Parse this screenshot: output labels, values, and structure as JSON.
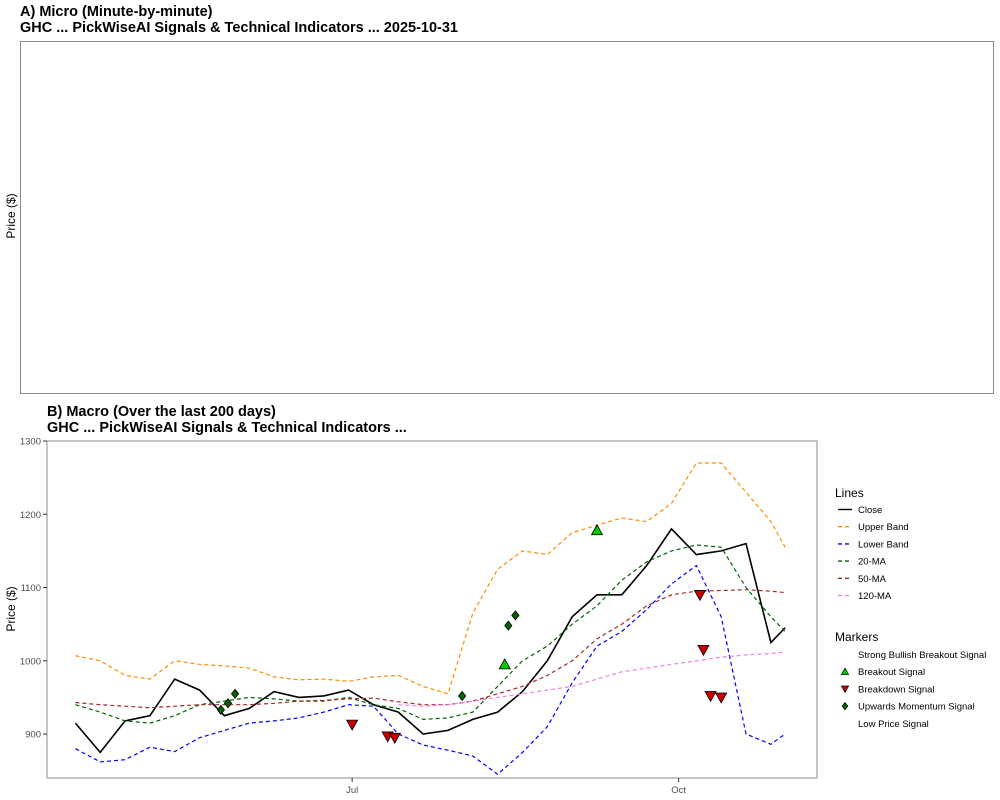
{
  "chart_data": [
    {
      "type": "line",
      "title": "A) Micro (Minute-by-minute)",
      "subtitle": "GHC ... PickWiseAI Signals & Technical Indicators ... 2025-10-31",
      "ylabel": "Price ($)",
      "series": []
    },
    {
      "type": "line",
      "title": "B) Macro (Over the last 200 days)",
      "subtitle": "GHC ... PickWiseAI Signals & Technical Indicators ...",
      "ylabel": "Price ($)",
      "x_ticks": [
        "Jul",
        "Oct"
      ],
      "y_ticks": [
        900,
        1000,
        1100,
        1200,
        1300
      ],
      "ylim": [
        840,
        1300
      ],
      "grid": false,
      "legend_position": "right",
      "x": [
        "2025-04-14",
        "2025-04-21",
        "2025-04-28",
        "2025-05-05",
        "2025-05-12",
        "2025-05-19",
        "2025-05-26",
        "2025-06-02",
        "2025-06-09",
        "2025-06-16",
        "2025-06-23",
        "2025-06-30",
        "2025-07-07",
        "2025-07-14",
        "2025-07-21",
        "2025-07-28",
        "2025-08-04",
        "2025-08-11",
        "2025-08-18",
        "2025-08-25",
        "2025-09-01",
        "2025-09-08",
        "2025-09-15",
        "2025-09-22",
        "2025-09-29",
        "2025-10-06",
        "2025-10-13",
        "2025-10-20",
        "2025-10-27",
        "2025-10-31"
      ],
      "series": [
        {
          "name": "Close",
          "color": "#000000",
          "dash": "solid",
          "values": [
            915,
            875,
            918,
            925,
            975,
            960,
            925,
            935,
            958,
            950,
            952,
            960,
            940,
            930,
            900,
            905,
            920,
            930,
            958,
            1000,
            1060,
            1090,
            1090,
            1130,
            1180,
            1145,
            1150,
            1160,
            1025,
            1045
          ]
        },
        {
          "name": "Upper Band",
          "color": "#ff8c00",
          "dash": "dashed",
          "values": [
            1007,
            1000,
            980,
            975,
            1000,
            995,
            993,
            990,
            978,
            974,
            975,
            972,
            978,
            980,
            965,
            955,
            1065,
            1125,
            1150,
            1145,
            1175,
            1185,
            1195,
            1190,
            1215,
            1270,
            1270,
            1230,
            1190,
            1155
          ]
        },
        {
          "name": "Lower Band",
          "color": "#0000ff",
          "dash": "dashed",
          "values": [
            880,
            862,
            865,
            882,
            876,
            895,
            905,
            915,
            918,
            922,
            930,
            940,
            938,
            900,
            885,
            878,
            870,
            845,
            875,
            910,
            970,
            1020,
            1040,
            1070,
            1105,
            1130,
            1060,
            900,
            886,
            900
          ]
        },
        {
          "name": "20-MA",
          "color": "#006400",
          "dash": "dashed",
          "values": [
            940,
            930,
            918,
            915,
            925,
            940,
            945,
            950,
            948,
            945,
            945,
            950,
            940,
            935,
            920,
            922,
            930,
            965,
            1000,
            1020,
            1050,
            1075,
            1110,
            1135,
            1150,
            1158,
            1155,
            1100,
            1060,
            1040
          ]
        },
        {
          "name": "50-MA",
          "color": "#a52a2a",
          "dash": "dashed",
          "values": [
            943,
            940,
            938,
            936,
            938,
            940,
            940,
            940,
            942,
            945,
            946,
            948,
            949,
            944,
            940,
            940,
            945,
            955,
            965,
            980,
            1000,
            1030,
            1050,
            1075,
            1090,
            1095,
            1096,
            1097,
            1095,
            1093
          ]
        },
        {
          "name": "120-MA",
          "color": "#ee82ee",
          "dash": "dashed",
          "values": [
            null,
            null,
            null,
            null,
            null,
            null,
            null,
            null,
            null,
            null,
            null,
            null,
            null,
            940,
            938,
            940,
            945,
            950,
            955,
            960,
            965,
            975,
            985,
            990,
            995,
            1000,
            1005,
            1008,
            1010,
            1012
          ]
        }
      ],
      "markers": [
        {
          "name": "Strong Bullish Breakout Signal",
          "shape": "none",
          "color": "",
          "points": []
        },
        {
          "name": "Breakout Signal",
          "shape": "triangle-up",
          "color": "#00cc00",
          "points": [
            {
              "x": "2025-08-13",
              "y": 995
            },
            {
              "x": "2025-09-08",
              "y": 1178
            }
          ]
        },
        {
          "name": "Breakdown Signal",
          "shape": "triangle-down",
          "color": "#cc0000",
          "points": [
            {
              "x": "2025-07-01",
              "y": 913
            },
            {
              "x": "2025-07-11",
              "y": 897
            },
            {
              "x": "2025-07-13",
              "y": 895
            },
            {
              "x": "2025-10-07",
              "y": 1090
            },
            {
              "x": "2025-10-08",
              "y": 1015
            },
            {
              "x": "2025-10-10",
              "y": 952
            },
            {
              "x": "2025-10-13",
              "y": 950
            }
          ]
        },
        {
          "name": "Upwards Momentum Signal",
          "shape": "diamond",
          "color": "#006400",
          "points": [
            {
              "x": "2025-05-25",
              "y": 933
            },
            {
              "x": "2025-05-27",
              "y": 942
            },
            {
              "x": "2025-05-29",
              "y": 955
            },
            {
              "x": "2025-08-01",
              "y": 952
            },
            {
              "x": "2025-08-14",
              "y": 1048
            },
            {
              "x": "2025-08-16",
              "y": 1062
            }
          ]
        },
        {
          "name": "Low Price Signal",
          "shape": "none",
          "color": "",
          "points": []
        }
      ],
      "legend": {
        "lines_title": "Lines",
        "markers_title": "Markers"
      }
    }
  ]
}
